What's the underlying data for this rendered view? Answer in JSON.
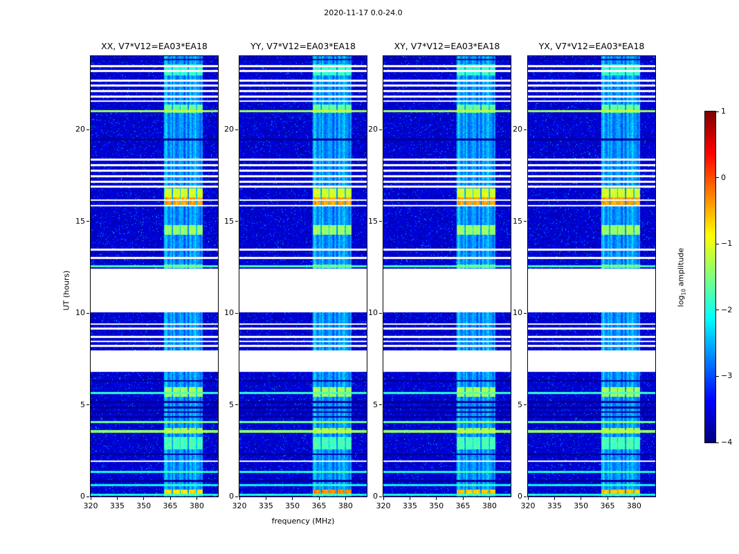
{
  "chart_data": {
    "type": "heatmap",
    "title": "2020-11-17 0.0-24.0",
    "xlabel": "frequency (MHz)",
    "ylabel": "UT (hours)",
    "panels": [
      {
        "label": "XX, V7*V12=EA03*EA18"
      },
      {
        "label": "YY, V7*V12=EA03*EA18"
      },
      {
        "label": "XY, V7*V12=EA03*EA18"
      },
      {
        "label": "YX, V7*V12=EA03*EA18"
      }
    ],
    "x_axis": {
      "range": [
        320,
        392
      ],
      "ticks": [
        320,
        335,
        350,
        365,
        380
      ]
    },
    "y_axis": {
      "range": [
        0,
        24
      ],
      "ticks": [
        0,
        5,
        10,
        15,
        20
      ]
    },
    "colorbar": {
      "label_prefix": "log",
      "label_sub": "10",
      "label_suffix": " amplitude",
      "range": [
        -4,
        1
      ],
      "ticks": [
        1,
        0,
        -1,
        -2,
        -3,
        -4
      ],
      "colormap": "jet"
    },
    "spectrogram": {
      "background_level": -3.6,
      "noise_sigma": 0.2,
      "rfi_band": {
        "freq_range": [
          361.5,
          383.5
        ],
        "channel_spacing_mhz": 2.3,
        "block_width_mhz": 4.6
      },
      "blank_time_ranges": [
        [
          6.8,
          7.95
        ],
        [
          10.05,
          12.42
        ]
      ],
      "white_lines": [
        1.92,
        8.2,
        8.45,
        8.7,
        9.15,
        9.4,
        13.0,
        13.45,
        15.85,
        16.15,
        16.88,
        17.15,
        17.45,
        17.75,
        18.05,
        18.35,
        21.55,
        21.8,
        22.1,
        22.4,
        22.65,
        23.2,
        23.45
      ],
      "dark_lines": [
        0.85,
        2.3,
        4.35,
        4.6,
        4.85,
        5.15,
        6.3,
        19.45,
        23.8
      ],
      "full_width_lines": [
        {
          "t": 0.1,
          "level": -2.0
        },
        {
          "t": 0.62,
          "level": -2.1
        },
        {
          "t": 1.35,
          "level": -2.0
        },
        {
          "t": 3.55,
          "level": -1.4
        },
        {
          "t": 4.05,
          "level": -1.6
        },
        {
          "t": 5.65,
          "level": -1.9
        },
        {
          "t": 12.55,
          "level": -1.8
        },
        {
          "t": 21.0,
          "level": -1.35
        }
      ],
      "band_events": [
        {
          "t": [
            0.08,
            0.38
          ],
          "levels": [
            -0.75,
            -0.3,
            -0.6,
            -0.6
          ]
        },
        {
          "t": [
            2.55,
            3.25
          ],
          "level": -1.75
        },
        {
          "t": [
            3.45,
            3.75
          ],
          "level": -1.35
        },
        {
          "t": [
            5.45,
            5.95
          ],
          "level": -1.3
        },
        {
          "t": [
            12.45,
            12.65
          ],
          "level": -1.55
        },
        {
          "t": [
            14.25,
            14.8
          ],
          "level": -1.35
        },
        {
          "t": [
            15.9,
            16.3
          ],
          "level": -0.4
        },
        {
          "t": [
            16.3,
            16.8
          ],
          "level": -1.05
        },
        {
          "t": [
            20.9,
            21.35
          ],
          "level": -1.6
        },
        {
          "t": [
            22.95,
            23.55
          ],
          "level": -1.85
        }
      ]
    }
  }
}
